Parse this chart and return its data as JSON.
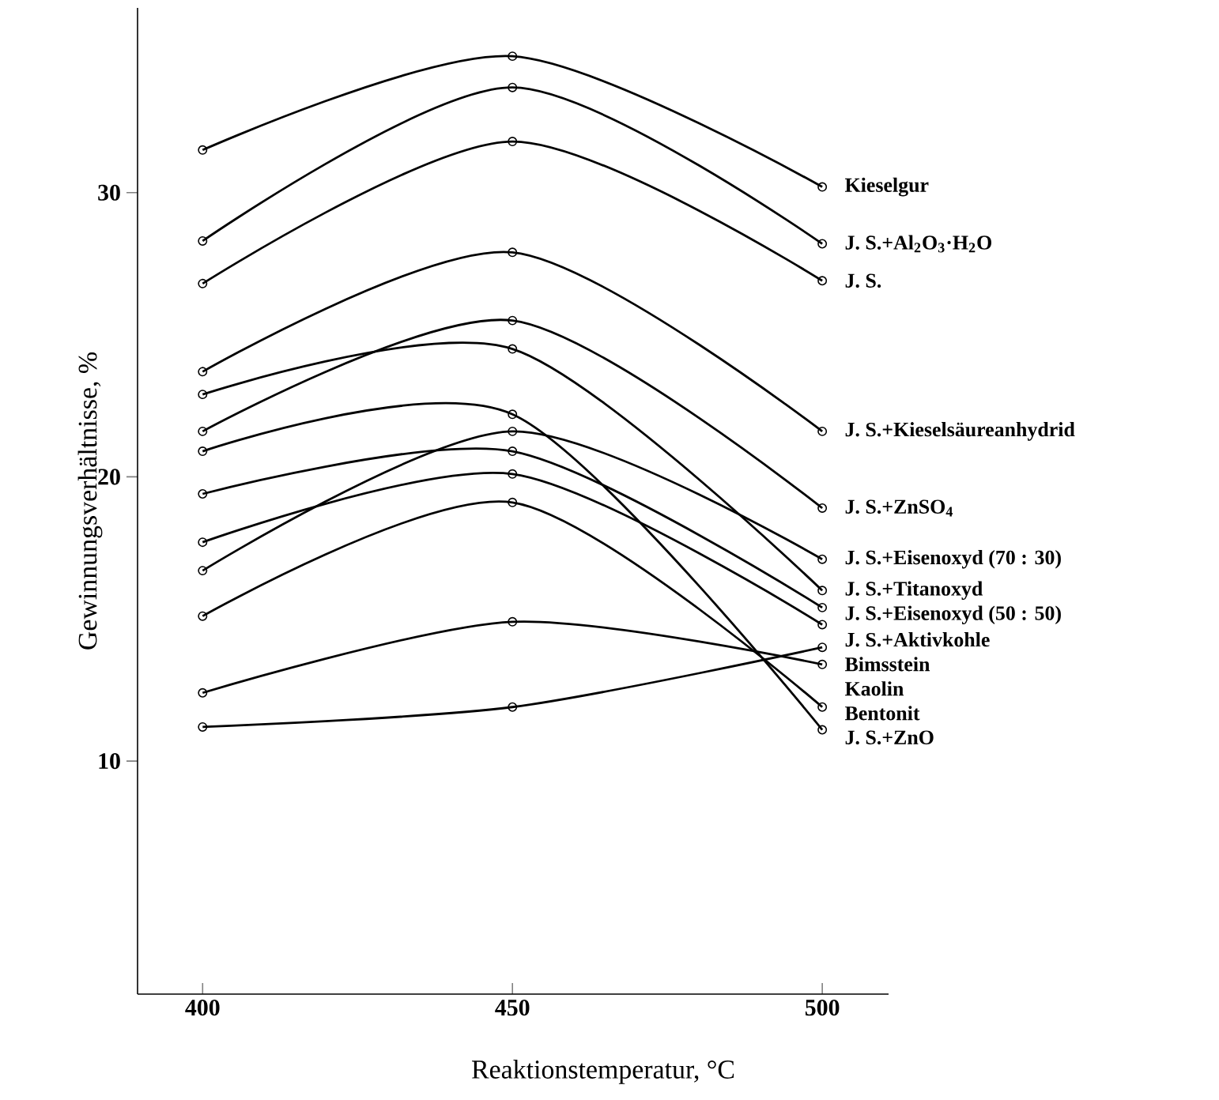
{
  "chart_data": {
    "type": "line",
    "xlabel": "Reaktionstemperatur, °C",
    "ylabel": "Gewinnungsverhältnisse, %",
    "x": [
      400,
      450,
      500
    ],
    "xlim": [
      389.5,
      510.7
    ],
    "xticks": [
      400,
      450,
      500
    ],
    "ylim": [
      1.8,
      36.5
    ],
    "yticks": [
      10,
      20,
      30
    ],
    "grid": false,
    "legend": false,
    "marker": "circle",
    "line_style": "solid",
    "series": [
      {
        "name": "Kieselgur",
        "color": "#000000",
        "values": [
          31.5,
          34.8,
          30.2
        ]
      },
      {
        "name": "J. S.+Al$_{2}$O$_{3}$·H$_{2}$O",
        "color": "#000000",
        "values": [
          28.3,
          33.7,
          28.2
        ]
      },
      {
        "name": "J. S.",
        "color": "#000000",
        "values": [
          26.8,
          31.8,
          26.9
        ]
      },
      {
        "name": "J. S.+Kieselsäureanhydrid",
        "color": "#000000",
        "values": [
          23.7,
          27.9,
          21.6
        ]
      },
      {
        "name": "J. S.+ZnSO$_{4}$",
        "color": "#000000",
        "values": [
          21.6,
          25.5,
          18.9
        ]
      },
      {
        "name": "J. S.+Eisenoxyd (70 : 30)",
        "color": "#000000",
        "values": [
          16.7,
          21.6,
          17.1
        ]
      },
      {
        "name": "J. S.+Titanoxyd",
        "color": "#000000",
        "values": [
          22.9,
          24.5,
          16.0
        ]
      },
      {
        "name": "J. S.+Eisenoxyd (50 : 50)",
        "color": "#000000",
        "values": [
          19.4,
          20.9,
          15.4
        ]
      },
      {
        "name": "J. S.+Aktivkohle",
        "color": "#000000",
        "values": [
          17.7,
          20.1,
          14.8
        ]
      },
      {
        "name": "Bimsstein",
        "color": "#000000",
        "values": [
          11.2,
          11.9,
          14.0
        ]
      },
      {
        "name": "Kaolin",
        "color": "#000000",
        "values": [
          12.4,
          14.9,
          13.4
        ]
      },
      {
        "name": "Bentonit",
        "color": "#000000",
        "values": [
          15.1,
          19.1,
          11.9
        ]
      },
      {
        "name": "J. S.+ZnO",
        "color": "#000000",
        "values": [
          20.9,
          22.2,
          11.1
        ]
      }
    ]
  }
}
